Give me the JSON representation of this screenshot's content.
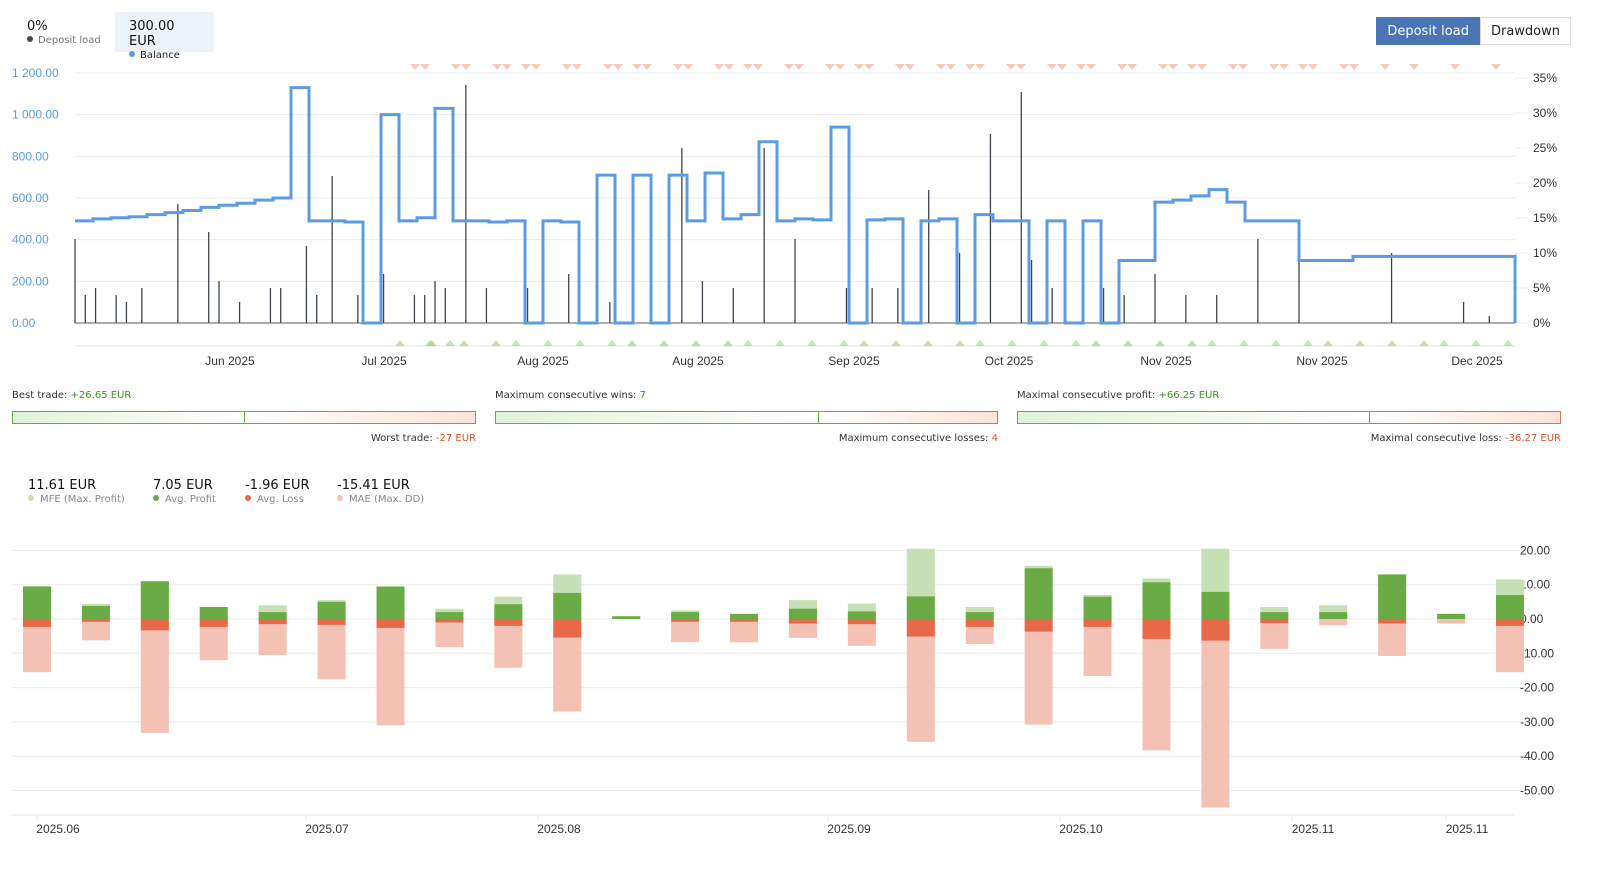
{
  "legend": {
    "deposit_load": {
      "value": "0%",
      "label": "Deposit load",
      "color": "#555a63"
    },
    "balance": {
      "value": "300.00 EUR",
      "label": "Balance",
      "color": "#5b9be6"
    }
  },
  "toggle": {
    "deposit_load": "Deposit load",
    "drawdown": "Drawdown"
  },
  "stats": {
    "best_trade_label": "Best trade:",
    "best_trade_value": "+26.65 EUR",
    "worst_trade_label": "Worst trade:",
    "worst_trade_value": "-27 EUR",
    "max_wins_label": "Maximum consecutive wins:",
    "max_wins_value": "7",
    "max_losses_label": "Maximum consecutive losses:",
    "max_losses_value": "4",
    "max_profit_label": "Maximal consecutive profit:",
    "max_profit_value": "+66.25 EUR",
    "max_loss_label": "Maximal consecutive loss:",
    "max_loss_value": "-36.27 EUR",
    "best_ratio": 0.497,
    "wins_ratio": 0.64,
    "profit_ratio": 0.646
  },
  "mfe_legend": [
    {
      "value": "11.61 EUR",
      "label": "MFE (Max. Profit)",
      "color": "#c5e0b4"
    },
    {
      "value": "7.05 EUR",
      "label": "Avg. Profit",
      "color": "#6aab45"
    },
    {
      "value": "-1.96 EUR",
      "label": "Avg. Loss",
      "color": "#e8694a"
    },
    {
      "value": "-15.41 EUR",
      "label": "MAE (Max. DD)",
      "color": "#f4c2b5"
    }
  ],
  "chart_data": [
    {
      "type": "line",
      "title": "Balance / Deposit load",
      "y_left_ticks": [
        "0.00",
        "200.00",
        "400.00",
        "600.00",
        "800.00",
        "1 000.00",
        "1 200.00"
      ],
      "y_left_range": [
        0,
        1200
      ],
      "y_right_ticks": [
        "0%",
        "5%",
        "10%",
        "15%",
        "20%",
        "25%",
        "30%",
        "35%"
      ],
      "y_right_range": [
        0,
        35
      ],
      "x_ticks": [
        "Jun 2025",
        "Jul 2025",
        "Aug 2025",
        "Aug 2025",
        "Sep 2025",
        "Oct 2025",
        "Nov 2025",
        "Nov 2025",
        "Dec 2025"
      ],
      "balance_series": {
        "name": "Balance",
        "t": [
          0,
          1,
          2,
          3,
          4,
          5,
          6,
          7,
          8,
          9,
          10,
          11,
          12,
          13,
          14,
          15,
          16,
          17,
          18,
          19,
          20,
          21,
          22,
          23,
          24,
          25,
          26,
          27,
          28,
          29,
          30,
          31,
          32,
          33,
          34,
          35,
          36,
          37,
          38,
          39,
          40,
          41,
          42,
          43,
          44,
          45,
          46,
          47,
          48,
          49,
          50,
          51,
          52,
          53,
          54,
          55,
          56,
          57,
          58,
          59,
          60,
          61,
          62,
          63,
          64,
          65,
          66,
          67,
          68,
          69,
          70,
          71,
          72,
          73,
          74,
          75,
          76,
          77,
          78,
          79,
          80
        ],
        "values": [
          490,
          500,
          505,
          510,
          520,
          530,
          540,
          555,
          565,
          575,
          590,
          600,
          1130,
          490,
          490,
          485,
          0,
          1000,
          490,
          505,
          1030,
          490,
          490,
          485,
          490,
          0,
          490,
          485,
          0,
          710,
          0,
          710,
          0,
          710,
          490,
          720,
          500,
          520,
          870,
          490,
          500,
          495,
          940,
          0,
          495,
          500,
          0,
          490,
          500,
          0,
          520,
          490,
          490,
          0,
          490,
          0,
          490,
          0,
          300,
          300,
          580,
          590,
          610,
          640,
          580,
          490,
          490,
          490,
          300,
          300,
          300,
          320,
          320,
          320,
          320,
          320,
          320,
          320,
          320,
          320,
          0
        ]
      },
      "deposit_load_spikes": {
        "name": "Deposit load",
        "t": [
          0,
          2,
          4,
          8,
          10,
          13,
          20,
          26,
          28,
          32,
          38,
          40,
          45,
          47,
          50,
          55,
          60,
          66,
          68,
          70,
          72,
          76,
          80,
          88,
          91,
          96,
          104,
          112,
          118,
          122,
          128,
          134,
          140,
          150,
          155,
          160,
          166,
          172,
          178,
          184,
          186,
          190,
          196,
          200,
          204,
          210,
          216,
          222,
          230,
          238,
          256,
          270,
          275
        ],
        "values_pct": [
          12,
          4,
          5,
          4,
          3,
          5,
          17,
          13,
          6,
          3,
          5,
          5,
          11,
          4,
          21,
          4,
          7,
          4,
          4,
          6,
          5,
          34,
          5,
          5,
          7,
          7,
          3,
          3,
          25,
          6,
          5,
          25,
          12,
          5,
          5,
          5,
          19,
          10,
          27,
          33,
          9,
          5,
          14,
          5,
          4,
          7,
          4,
          4,
          12,
          10,
          10,
          3,
          1
        ]
      },
      "loss_markers": 56,
      "win_markers": 41
    },
    {
      "type": "bar",
      "title": "MFE / MAE",
      "y_ticks": [
        "20.00",
        "10.00",
        "0.00",
        "-10.00",
        "-20.00",
        "-30.00",
        "-40.00",
        "-50.00"
      ],
      "ylim": [
        -55,
        22
      ],
      "x_ticks": [
        "2025.06",
        "2025.07",
        "2025.08",
        "2025.09",
        "2025.10",
        "2025.11",
        "2025.11"
      ],
      "series": [
        {
          "name": "MFE (Max. Profit)",
          "values": [
            9.5,
            4.4,
            11,
            3.5,
            4,
            5.5,
            9.6,
            3,
            6.5,
            13,
            0.8,
            2.5,
            1.5,
            5.5,
            4.5,
            20.5,
            3.5,
            15.5,
            7,
            11.8,
            20.5,
            3.5,
            4,
            13,
            1.5,
            11.5
          ]
        },
        {
          "name": "Avg. Profit",
          "values": [
            9.5,
            3.8,
            11,
            3.5,
            2,
            5,
            9.4,
            2,
            4.3,
            7.6,
            0.8,
            2,
            1.5,
            3,
            2.2,
            6.6,
            2,
            14.8,
            6.5,
            10.7,
            7.9,
            2,
            2,
            13,
            1.5,
            7
          ]
        },
        {
          "name": "Avg. Loss",
          "values": [
            -2.3,
            -0.8,
            -3.3,
            -2.3,
            -1.5,
            -1.7,
            -2.6,
            -1,
            -2,
            -5.4,
            0,
            -0.8,
            -0.8,
            -1.3,
            -1.5,
            -5.1,
            -2.3,
            -3.7,
            -2.3,
            -5.8,
            -6.3,
            -1.2,
            0,
            -1.3,
            0,
            -2
          ]
        },
        {
          "name": "MAE (Max. DD)",
          "values": [
            -15.5,
            -6.2,
            -33.2,
            -12,
            -10.5,
            -17.6,
            -31,
            -8.2,
            -14.2,
            -27,
            0,
            -6.7,
            -6.8,
            -5.5,
            -7.8,
            -35.8,
            -7.3,
            -30.8,
            -16.6,
            -38.3,
            -55,
            -8.7,
            -1.8,
            -10.8,
            -1.3,
            -15.5
          ]
        }
      ]
    }
  ]
}
